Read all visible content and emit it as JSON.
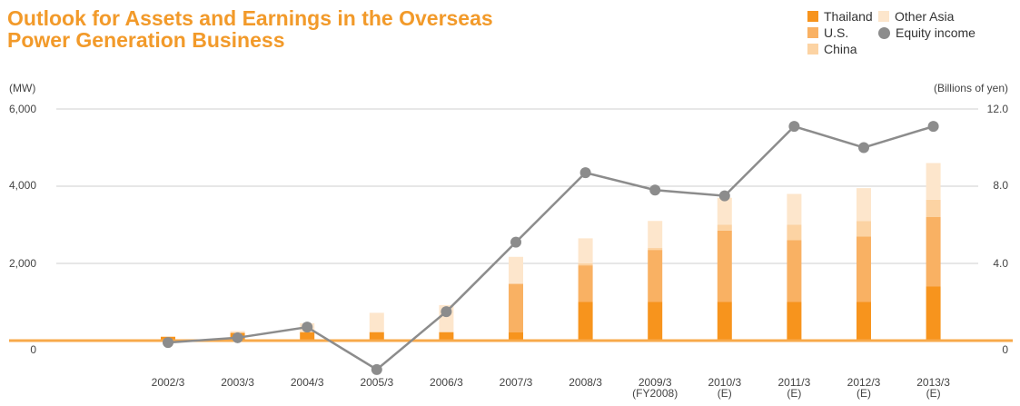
{
  "title_lines": [
    "Outlook for Assets and Earnings in the Overseas",
    "Power Generation Business"
  ],
  "legend": [
    {
      "label": "Thailand",
      "color": "#f7941d"
    },
    {
      "label": "U.S.",
      "color": "#f9b163"
    },
    {
      "label": "China",
      "color": "#fcd3a3"
    },
    {
      "label": "Other Asia",
      "color": "#fde6cc"
    },
    {
      "label": "Equity income",
      "color": "#8c8c8c"
    }
  ],
  "chart_data": {
    "type": "bar",
    "y_left_label": "(MW)",
    "y_right_label": "(Billions of yen)",
    "y_left_ticks": [
      "6,000",
      "4,000",
      "2,000",
      "0"
    ],
    "y_right_ticks": [
      "12.0",
      "8.0",
      "4.0",
      "0"
    ],
    "y_left_range": [
      0,
      6000
    ],
    "y_right_range": [
      0,
      12
    ],
    "categories": [
      [
        "2002/3"
      ],
      [
        "2003/3"
      ],
      [
        "2004/3"
      ],
      [
        "2005/3"
      ],
      [
        "2006/3"
      ],
      [
        "2007/3"
      ],
      [
        "2008/3"
      ],
      [
        "2009/3",
        "(FY2008)"
      ],
      [
        "2010/3",
        "(E)"
      ],
      [
        "2011/3",
        "(E)"
      ],
      [
        "2012/3",
        "(E)"
      ],
      [
        "2013/3",
        "(E)"
      ]
    ],
    "stack_series": [
      {
        "name": "Thailand",
        "color": "#f7941d",
        "values": [
          100,
          200,
          220,
          220,
          220,
          220,
          1000,
          1000,
          1000,
          1000,
          1000,
          1400
        ]
      },
      {
        "name": "U.S.",
        "color": "#f9b163",
        "values": [
          0,
          0,
          0,
          0,
          0,
          1250,
          950,
          1350,
          1850,
          1600,
          1700,
          1800
        ]
      },
      {
        "name": "China",
        "color": "#fcd3a3",
        "values": [
          0,
          0,
          0,
          0,
          0,
          0,
          50,
          50,
          150,
          400,
          400,
          450
        ]
      },
      {
        "name": "Other Asia",
        "color": "#fde6cc",
        "values": [
          0,
          50,
          230,
          500,
          700,
          700,
          650,
          700,
          700,
          800,
          850,
          950
        ]
      }
    ],
    "line_series": {
      "name": "Equity income",
      "color": "#8c8c8c",
      "values": [
        -0.1,
        0.15,
        0.7,
        -1.5,
        1.5,
        5.1,
        8.7,
        7.8,
        7.5,
        11.1,
        10.0,
        11.1
      ]
    },
    "grid": true
  }
}
